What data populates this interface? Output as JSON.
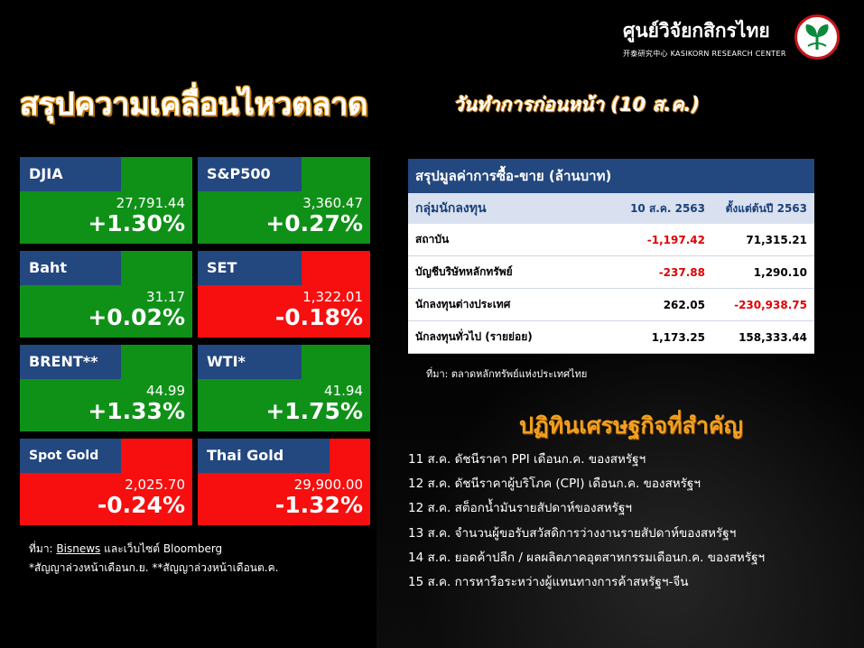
{
  "header": {
    "logo_text": "ศูนย์วิจัยกสิกรไทย",
    "logo_sub": "开泰研究中心 KASIKORN RESEARCH CENTER",
    "title": "สรุปความเคลื่อนไหวตลาด",
    "subtitle": "วันทำการก่อนหน้า (10 ส.ค.)"
  },
  "tiles": [
    {
      "name": "DJIA",
      "price": "27,791.44",
      "change": "+1.30%",
      "direction": "up"
    },
    {
      "name": "S&P500",
      "price": "3,360.47",
      "change": "+0.27%",
      "direction": "up"
    },
    {
      "name": "Baht",
      "price": "31.17",
      "change": "+0.02%",
      "direction": "up"
    },
    {
      "name": "SET",
      "price": "1,322.01",
      "change": "-0.18%",
      "direction": "down"
    },
    {
      "name": "BRENT**",
      "price": "44.99",
      "change": "+1.33%",
      "direction": "up"
    },
    {
      "name": "WTI*",
      "price": "41.94",
      "change": "+1.75%",
      "direction": "up"
    },
    {
      "name": "Spot Gold",
      "price": "2,025.70",
      "change": "-0.24%",
      "direction": "down"
    },
    {
      "name": "Thai Gold",
      "price": "29,900.00",
      "change": "-1.32%",
      "direction": "down"
    }
  ],
  "colors": {
    "up": "#0f9118",
    "down": "#f70e0e",
    "label_bg": "#23477f"
  },
  "left_sources": {
    "line1_prefix": "ที่มา: ",
    "line1_bisnews": "Bisnews",
    "line1_rest": " และเว็บไซต์ Bloomberg",
    "line2": "*สัญญาล่วงหน้าเดือนก.ย. **สัญญาล่วงหน้าเดือนต.ค."
  },
  "trade_table": {
    "title": "สรุปมูลค่าการซื้อ-ขาย (ล้านบาท)",
    "columns": [
      "กลุ่มนักลงทุน",
      "10 ส.ค. 2563",
      "ตั้งแต่ต้นปี 2563"
    ],
    "rows": [
      {
        "group": "สถาบัน",
        "day": "-1,197.42",
        "ytd": "71,315.21"
      },
      {
        "group": "บัญชีบริษัทหลักทรัพย์",
        "day": "-237.88",
        "ytd": "1,290.10"
      },
      {
        "group": "นักลงทุนต่างประเทศ",
        "day": "262.05",
        "ytd": "-230,938.75"
      },
      {
        "group": "นักลงทุนทั่วไป (รายย่อย)",
        "day": "1,173.25",
        "ytd": "158,333.44"
      }
    ],
    "source": "ที่มา: ตลาดหลักทรัพย์แห่งประเทศไทย"
  },
  "calendar": {
    "title": "ปฏิทินเศรษฐกิจที่สำคัญ",
    "events": [
      "11 ส.ค. ดัชนีราคา PPI เดือนก.ค. ของสหรัฐฯ",
      "12 ส.ค. ดัชนีราคาผู้บริโภค (CPI) เดือนก.ค. ของสหรัฐฯ",
      "12 ส.ค. สต็อกน้ำมันรายสัปดาห์ของสหรัฐฯ",
      "13 ส.ค. จำนวนผู้ขอรับสวัสดิการว่างงานรายสัปดาห์ของสหรัฐฯ",
      "14 ส.ค. ยอดค้าปลีก / ผลผลิตภาคอุตสาหกรรมเดือนก.ค. ของสหรัฐฯ",
      "15 ส.ค. การหารือระหว่างผู้แทนทางการค้าสหรัฐฯ-จีน"
    ]
  }
}
